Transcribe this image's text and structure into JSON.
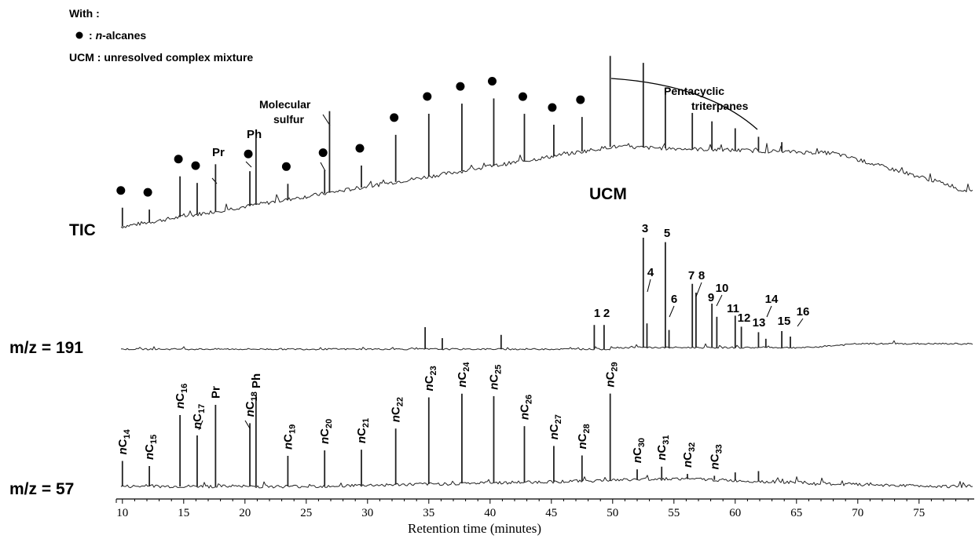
{
  "legend": {
    "with": "With :",
    "dot_label": ": n-alcanes",
    "dot_prefix": ":",
    "dot_italic": "n",
    "dot_rest": "-alcanes",
    "ucm_key": "UCM",
    "ucm_text": ": unresolved complex mixture"
  },
  "annotations": {
    "pentacyclic_line1": "Pentacyclic",
    "pentacyclic_line2": "triterpanes",
    "molecular_line1": "Molecular",
    "molecular_line2": "sulfur",
    "pr": "Pr",
    "ph": "Ph",
    "ucm": "UCM"
  },
  "chart_data": {
    "type": "line",
    "xlabel": "Retention time (minutes)",
    "xlim": [
      9.5,
      79.5
    ],
    "xticks": [
      10,
      15,
      20,
      25,
      30,
      35,
      40,
      45,
      50,
      55,
      60,
      65,
      70,
      75
    ],
    "series": [
      {
        "name": "TIC",
        "peaks": [
          {
            "x": 10.0,
            "h": 0.12,
            "dot": true
          },
          {
            "x": 12.2,
            "h": 0.08,
            "dot": true
          },
          {
            "x": 14.7,
            "h": 0.26,
            "dot": true
          },
          {
            "x": 16.1,
            "h": 0.2,
            "dot": true
          },
          {
            "x": 17.6,
            "h": 0.3,
            "label": "Pr"
          },
          {
            "x": 20.4,
            "h": 0.22,
            "dot": true
          },
          {
            "x": 20.9,
            "h": 0.44,
            "label": "Ph"
          },
          {
            "x": 23.5,
            "h": 0.1,
            "dot": true
          },
          {
            "x": 26.5,
            "h": 0.15,
            "dot": true
          },
          {
            "x": 26.9,
            "h": 0.52,
            "label": "Molecular sulfur"
          },
          {
            "x": 29.5,
            "h": 0.14,
            "dot": true
          },
          {
            "x": 32.3,
            "h": 0.3,
            "dot": true
          },
          {
            "x": 35.0,
            "h": 0.4,
            "dot": true
          },
          {
            "x": 37.7,
            "h": 0.43,
            "dot": true
          },
          {
            "x": 40.3,
            "h": 0.43,
            "dot": true
          },
          {
            "x": 42.8,
            "h": 0.3,
            "dot": true
          },
          {
            "x": 45.2,
            "h": 0.2,
            "dot": true
          },
          {
            "x": 47.5,
            "h": 0.22,
            "dot": true
          },
          {
            "x": 49.8,
            "h": 0.58
          },
          {
            "x": 52.5,
            "h": 0.54
          },
          {
            "x": 54.3,
            "h": 0.35
          },
          {
            "x": 56.5,
            "h": 0.23
          },
          {
            "x": 58.1,
            "h": 0.18
          },
          {
            "x": 60.0,
            "h": 0.14
          },
          {
            "x": 61.9,
            "h": 0.09
          },
          {
            "x": 63.8,
            "h": 0.06
          }
        ]
      },
      {
        "name": "m/z = 191",
        "peak_labels": [
          "1",
          "2",
          "3",
          "4",
          "5",
          "6",
          "7",
          "8",
          "9",
          "10",
          "11",
          "12",
          "13",
          "14",
          "15",
          "16"
        ],
        "peaks": [
          {
            "x": 34.7,
            "h": 0.2
          },
          {
            "x": 36.1,
            "h": 0.1
          },
          {
            "x": 40.9,
            "h": 0.13
          },
          {
            "x": 48.5,
            "h": 0.22,
            "label": "1"
          },
          {
            "x": 49.3,
            "h": 0.22,
            "label": "2"
          },
          {
            "x": 52.5,
            "h": 1.0,
            "label": "3"
          },
          {
            "x": 52.8,
            "h": 0.22,
            "label": "4"
          },
          {
            "x": 54.3,
            "h": 0.96,
            "label": "5"
          },
          {
            "x": 54.6,
            "h": 0.16,
            "label": "6"
          },
          {
            "x": 56.5,
            "h": 0.58,
            "label": "7"
          },
          {
            "x": 56.8,
            "h": 0.5,
            "label": "8"
          },
          {
            "x": 58.1,
            "h": 0.4,
            "label": "9"
          },
          {
            "x": 58.5,
            "h": 0.28,
            "label": "10"
          },
          {
            "x": 60.0,
            "h": 0.29,
            "label": "11"
          },
          {
            "x": 60.5,
            "h": 0.19,
            "label": "12"
          },
          {
            "x": 61.9,
            "h": 0.14,
            "label": "13"
          },
          {
            "x": 62.5,
            "h": 0.08,
            "label": "14"
          },
          {
            "x": 63.8,
            "h": 0.15,
            "label": "15"
          },
          {
            "x": 64.5,
            "h": 0.1,
            "label": "16"
          }
        ]
      },
      {
        "name": "m/z = 57",
        "peaks": [
          {
            "x": 10.0,
            "h": 0.25,
            "label": "nC14"
          },
          {
            "x": 12.2,
            "h": 0.2,
            "label": "nC15"
          },
          {
            "x": 14.7,
            "h": 0.7,
            "label": "nC16"
          },
          {
            "x": 16.1,
            "h": 0.5,
            "label": "nC17"
          },
          {
            "x": 17.6,
            "h": 0.8,
            "label": "Pr"
          },
          {
            "x": 20.4,
            "h": 0.62,
            "label": "nC18"
          },
          {
            "x": 20.9,
            "h": 0.9,
            "label": "Ph"
          },
          {
            "x": 23.5,
            "h": 0.3,
            "label": "nC19"
          },
          {
            "x": 26.5,
            "h": 0.35,
            "label": "nC20"
          },
          {
            "x": 29.5,
            "h": 0.35,
            "label": "nC21"
          },
          {
            "x": 32.3,
            "h": 0.55,
            "label": "nC22"
          },
          {
            "x": 35.0,
            "h": 0.85,
            "label": "nC23"
          },
          {
            "x": 37.7,
            "h": 0.88,
            "label": "nC24"
          },
          {
            "x": 40.3,
            "h": 0.85,
            "label": "nC25"
          },
          {
            "x": 42.8,
            "h": 0.55,
            "label": "nC26"
          },
          {
            "x": 45.2,
            "h": 0.35,
            "label": "nC27"
          },
          {
            "x": 47.5,
            "h": 0.25,
            "label": "nC28"
          },
          {
            "x": 49.8,
            "h": 0.85,
            "label": "nC29"
          },
          {
            "x": 52.0,
            "h": 0.1,
            "label": "nC30"
          },
          {
            "x": 54.0,
            "h": 0.12,
            "label": "nC31"
          },
          {
            "x": 56.1,
            "h": 0.05,
            "label": "nC32"
          },
          {
            "x": 58.3,
            "h": 0.04,
            "label": "nC33"
          },
          {
            "x": 60.0,
            "h": 0.08
          },
          {
            "x": 61.9,
            "h": 0.1
          }
        ]
      }
    ]
  }
}
